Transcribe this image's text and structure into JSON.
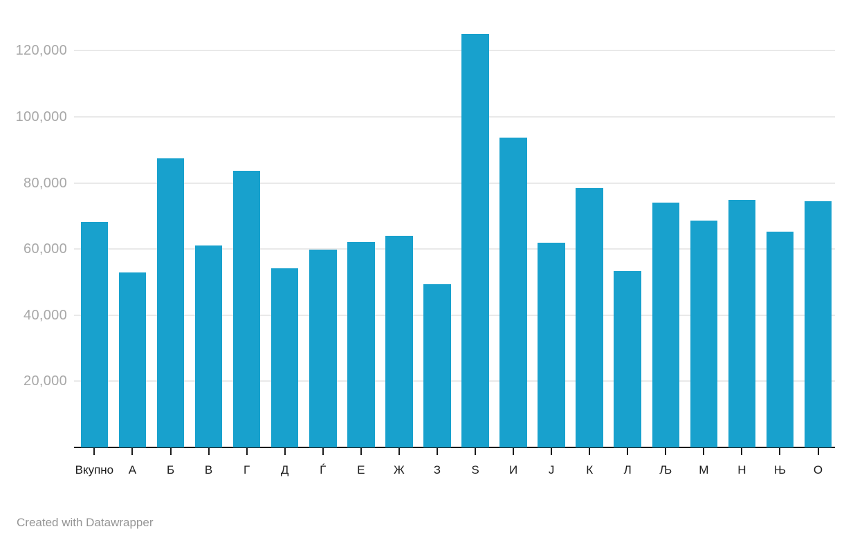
{
  "chart_data": {
    "type": "bar",
    "categories": [
      "Вкупно",
      "А",
      "Б",
      "В",
      "Г",
      "Д",
      "Ѓ",
      "Е",
      "Ж",
      "З",
      "Ѕ",
      "И",
      "Ј",
      "К",
      "Л",
      "Љ",
      "М",
      "Н",
      "Њ",
      "О"
    ],
    "values": [
      68300,
      53000,
      87500,
      61000,
      83600,
      54100,
      59900,
      62200,
      64100,
      49400,
      125200,
      93700,
      62000,
      78400,
      53300,
      74000,
      68700,
      74800,
      65300,
      74400
    ],
    "title": "",
    "xlabel": "",
    "ylabel": "",
    "ylim": [
      0,
      127000
    ],
    "yticks": [
      20000,
      40000,
      60000,
      80000,
      100000,
      120000
    ],
    "ytick_labels": [
      "20,000",
      "40,000",
      "60,000",
      "80,000",
      "100,000",
      "120,000"
    ],
    "grid": true,
    "legend": "none",
    "bar_color": "#18a1cd"
  },
  "footer": {
    "credit": "Created with Datawrapper"
  },
  "colors": {
    "bar": "#18a1cd",
    "gridline": "#e9e9e9",
    "axis": "#1a1a1a",
    "y_tick_label": "#a8a8a8",
    "x_tick_label": "#1d1d1d",
    "footer_text": "#959595",
    "background": "#ffffff"
  }
}
